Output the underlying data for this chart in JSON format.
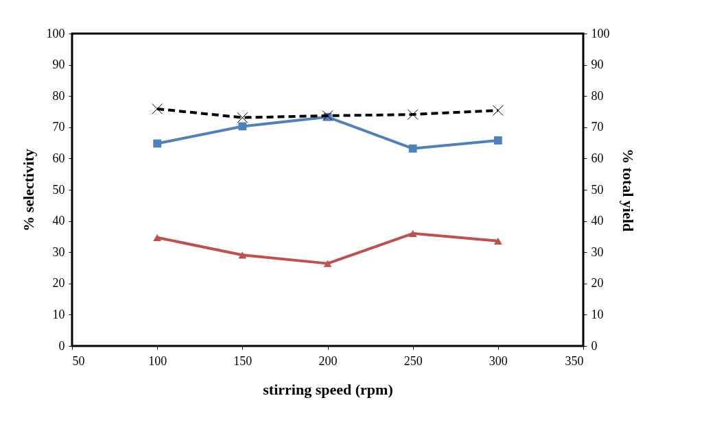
{
  "chart_data": {
    "type": "line",
    "xlabel": "stirring speed (rpm)",
    "ylabel": "% selectivity",
    "y2label": "% total yield",
    "x": [
      100,
      150,
      200,
      250,
      300
    ],
    "series": [
      {
        "color": "#4f81bd",
        "values": [
          64.8,
          70.3,
          73.3,
          63.2,
          65.8
        ],
        "marker": "square",
        "line_style": "solid"
      },
      {
        "color": "#c0504d",
        "values": [
          34.7,
          29.1,
          26.4,
          36.0,
          33.6
        ],
        "marker": "triangle",
        "line_style": "solid"
      },
      {
        "color": "#000000",
        "values": [
          75.9,
          73.1,
          73.7,
          74.1,
          75.4
        ],
        "marker": "cross",
        "line_style": "dashed",
        "axis": "y2"
      }
    ],
    "xlim": [
      50,
      350
    ],
    "xticks": [
      50,
      100,
      150,
      200,
      250,
      300,
      350
    ],
    "ylim": [
      0,
      100
    ],
    "yticks": [
      0,
      10,
      20,
      30,
      40,
      50,
      60,
      70,
      80,
      90,
      100
    ],
    "y2lim": [
      0,
      100
    ],
    "y2ticks": [
      0,
      10,
      20,
      30,
      40,
      50,
      60,
      70,
      80,
      90,
      100
    ],
    "grid": false
  }
}
